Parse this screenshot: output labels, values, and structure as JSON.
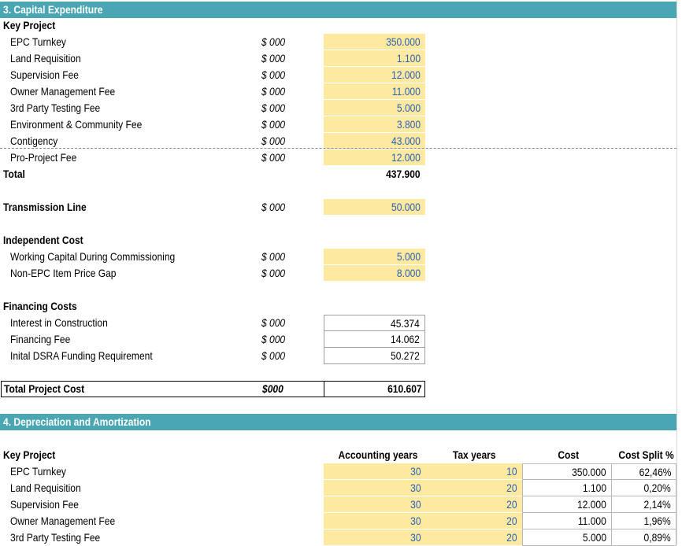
{
  "capex": {
    "header": "3. Capital Expenditure",
    "key_project_label": "Key Project",
    "items": [
      {
        "label": "EPC Turnkey",
        "unit": "$ 000",
        "value": "350.000"
      },
      {
        "label": "Land Requisition",
        "unit": "$ 000",
        "value": "1.100"
      },
      {
        "label": "Supervision Fee",
        "unit": "$ 000",
        "value": "12.000"
      },
      {
        "label": "Owner Management Fee",
        "unit": "$ 000",
        "value": "11.000"
      },
      {
        "label": "3rd Party Testing Fee",
        "unit": "$ 000",
        "value": "5.000"
      },
      {
        "label": "Environment & Community Fee",
        "unit": "$ 000",
        "value": "3.800"
      },
      {
        "label": "Contigency",
        "unit": "$ 000",
        "value": "43.000"
      },
      {
        "label": "Pro-Project Fee",
        "unit": "$ 000",
        "value": "12.000"
      }
    ],
    "total_label": "Total",
    "total_value": "437.900",
    "transmission": {
      "label": "Transmission Line",
      "unit": "$ 000",
      "value": "50.000"
    },
    "independent_label": "Independent Cost",
    "independent_items": [
      {
        "label": "Working Capital During Commissioning",
        "unit": "$ 000",
        "value": "5.000"
      },
      {
        "label": "Non-EPC Item Price Gap",
        "unit": "$ 000",
        "value": "8.000"
      }
    ],
    "financing_label": "Financing Costs",
    "financing_items": [
      {
        "label": "Interest in Construction",
        "unit": "$ 000",
        "value": "45.374"
      },
      {
        "label": "Financing Fee",
        "unit": "$ 000",
        "value": "14.062"
      },
      {
        "label": "Inital DSRA Funding Requirement",
        "unit": "$ 000",
        "value": "50.272"
      }
    ],
    "total_project": {
      "label": "Total Project Cost",
      "unit": "$000",
      "value": "610.607"
    }
  },
  "depreciation": {
    "header": "4. Depreciation and Amortization",
    "key_project_label": "Key Project",
    "columns": {
      "accounting": "Accounting years",
      "tax": "Tax years",
      "cost": "Cost",
      "split": "Cost Split %"
    },
    "rows": [
      {
        "label": "EPC Turnkey",
        "accounting": "30",
        "tax": "10",
        "cost": "350.000",
        "split": "62,46%"
      },
      {
        "label": "Land Requisition",
        "accounting": "30",
        "tax": "20",
        "cost": "1.100",
        "split": "0,20%"
      },
      {
        "label": "Supervision Fee",
        "accounting": "30",
        "tax": "20",
        "cost": "12.000",
        "split": "2,14%"
      },
      {
        "label": "Owner Management Fee",
        "accounting": "30",
        "tax": "20",
        "cost": "11.000",
        "split": "1,96%"
      },
      {
        "label": "3rd Party Testing Fee",
        "accounting": "30",
        "tax": "20",
        "cost": "5.000",
        "split": "0,89%"
      }
    ]
  }
}
